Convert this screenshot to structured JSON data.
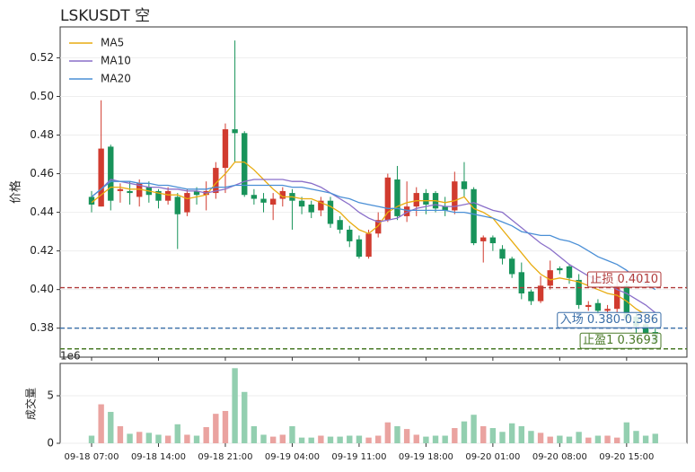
{
  "chart_data": {
    "type": "candlestick",
    "title": "LSKUSDT  空",
    "ylabel": "价格",
    "volume_ylabel": "成交量",
    "volume_offset_label": "1e6",
    "categories": [
      "09-18 07:00",
      null,
      null,
      null,
      null,
      null,
      null,
      "09-18 14:00",
      null,
      null,
      null,
      null,
      null,
      null,
      "09-18 21:00",
      null,
      null,
      null,
      null,
      null,
      null,
      "09-19 04:00",
      null,
      null,
      null,
      null,
      null,
      null,
      "09-19 11:00",
      null,
      null,
      null,
      null,
      null,
      null,
      "09-19 18:00",
      null,
      null,
      null,
      null,
      null,
      null,
      "09-20 01:00",
      null,
      null,
      null,
      null,
      null,
      null,
      "09-20 08:00",
      null,
      null,
      null,
      null,
      null,
      null,
      "09-20 15:00",
      null,
      null,
      null
    ],
    "open": [
      0.448,
      0.443,
      0.474,
      0.451,
      0.451,
      0.448,
      0.453,
      0.451,
      0.446,
      0.448,
      0.44,
      0.451,
      0.449,
      0.45,
      0.463,
      0.483,
      0.481,
      0.449,
      0.447,
      0.444,
      0.447,
      0.45,
      0.446,
      0.444,
      0.441,
      0.446,
      0.436,
      0.431,
      0.426,
      0.417,
      0.429,
      0.436,
      0.457,
      0.438,
      0.443,
      0.45,
      0.45,
      0.443,
      0.441,
      0.456,
      0.452,
      0.425,
      0.427,
      0.421,
      0.416,
      0.409,
      0.399,
      0.394,
      0.402,
      0.411,
      0.412,
      0.405,
      0.391,
      0.393,
      0.389,
      0.39,
      0.402,
      0.386,
      0.382,
      0.378
    ],
    "high": [
      0.451,
      0.498,
      0.475,
      0.455,
      0.456,
      0.457,
      0.456,
      0.452,
      0.453,
      0.45,
      0.452,
      0.453,
      0.456,
      0.466,
      0.486,
      0.529,
      0.482,
      0.452,
      0.45,
      0.45,
      0.453,
      0.452,
      0.448,
      0.446,
      0.448,
      0.448,
      0.438,
      0.433,
      0.428,
      0.431,
      0.44,
      0.46,
      0.464,
      0.456,
      0.453,
      0.452,
      0.451,
      0.448,
      0.461,
      0.466,
      0.453,
      0.428,
      0.428,
      0.423,
      0.417,
      0.414,
      0.4,
      0.407,
      0.415,
      0.412,
      0.413,
      0.408,
      0.394,
      0.395,
      0.392,
      0.405,
      0.404,
      0.388,
      0.384,
      0.38
    ],
    "low": [
      0.44,
      0.443,
      0.441,
      0.445,
      0.444,
      0.443,
      0.445,
      0.442,
      0.444,
      0.421,
      0.438,
      0.444,
      0.441,
      0.447,
      0.45,
      0.466,
      0.448,
      0.444,
      0.44,
      0.436,
      0.443,
      0.431,
      0.439,
      0.437,
      0.438,
      0.432,
      0.429,
      0.422,
      0.416,
      0.416,
      0.427,
      0.435,
      0.436,
      0.435,
      0.438,
      0.439,
      0.44,
      0.438,
      0.439,
      0.448,
      0.423,
      0.414,
      0.42,
      0.413,
      0.406,
      0.395,
      0.392,
      0.393,
      0.4,
      0.408,
      0.403,
      0.39,
      0.389,
      0.387,
      0.385,
      0.388,
      0.382,
      0.377,
      0.374,
      0.371
    ],
    "close": [
      0.444,
      0.473,
      0.446,
      0.452,
      0.45,
      0.455,
      0.449,
      0.446,
      0.451,
      0.439,
      0.45,
      0.449,
      0.451,
      0.463,
      0.483,
      0.481,
      0.449,
      0.447,
      0.445,
      0.447,
      0.451,
      0.446,
      0.443,
      0.44,
      0.446,
      0.434,
      0.431,
      0.425,
      0.417,
      0.429,
      0.436,
      0.458,
      0.438,
      0.443,
      0.45,
      0.444,
      0.442,
      0.441,
      0.456,
      0.452,
      0.424,
      0.427,
      0.424,
      0.416,
      0.408,
      0.398,
      0.394,
      0.402,
      0.41,
      0.41,
      0.406,
      0.392,
      0.392,
      0.389,
      0.39,
      0.402,
      0.385,
      0.381,
      0.377,
      0.373
    ],
    "volume": [
      0.8,
      4.1,
      3.3,
      1.8,
      1.0,
      1.2,
      1.1,
      0.9,
      0.8,
      2.0,
      0.9,
      0.8,
      1.7,
      3.1,
      3.4,
      7.9,
      5.4,
      1.8,
      0.9,
      0.7,
      0.9,
      1.8,
      0.6,
      0.6,
      0.8,
      0.7,
      0.7,
      0.8,
      0.8,
      0.6,
      0.8,
      2.2,
      1.8,
      1.5,
      0.9,
      0.7,
      0.8,
      0.8,
      1.6,
      2.3,
      3.0,
      1.8,
      1.6,
      1.2,
      2.1,
      1.8,
      1.3,
      1.1,
      0.7,
      0.8,
      0.7,
      1.2,
      0.6,
      0.8,
      0.8,
      0.6,
      2.2,
      1.3,
      0.8,
      1.0
    ],
    "up_color": "#d13b2f",
    "down_color": "#18935a",
    "volume_up_color": "#eaa3a0",
    "volume_down_color": "#93cfb0",
    "series": [
      {
        "name": "MA5",
        "color": "#e8ac10",
        "values": [
          0.445,
          0.449,
          0.453,
          0.453,
          0.452,
          0.452,
          0.451,
          0.45,
          0.449,
          0.449,
          0.447,
          0.448,
          0.449,
          0.455,
          0.46,
          0.466,
          0.466,
          0.462,
          0.457,
          0.452,
          0.448,
          0.448,
          0.447,
          0.447,
          0.445,
          0.443,
          0.44,
          0.435,
          0.431,
          0.429,
          0.433,
          0.44,
          0.443,
          0.445,
          0.446,
          0.446,
          0.446,
          0.445,
          0.446,
          0.448,
          0.442,
          0.44,
          0.437,
          0.431,
          0.425,
          0.419,
          0.413,
          0.408,
          0.405,
          0.406,
          0.405,
          0.404,
          0.402,
          0.4,
          0.398,
          0.397,
          0.394,
          0.39,
          0.387,
          0.384
        ]
      },
      {
        "name": "MA10",
        "color": "#8a6fc9",
        "values": [
          0.448,
          0.452,
          0.457,
          0.456,
          0.455,
          0.454,
          0.453,
          0.453,
          0.452,
          0.452,
          0.451,
          0.451,
          0.45,
          0.451,
          0.452,
          0.454,
          0.456,
          0.457,
          0.457,
          0.457,
          0.457,
          0.456,
          0.456,
          0.455,
          0.453,
          0.45,
          0.447,
          0.444,
          0.44,
          0.437,
          0.435,
          0.436,
          0.437,
          0.44,
          0.442,
          0.443,
          0.444,
          0.443,
          0.443,
          0.444,
          0.445,
          0.443,
          0.441,
          0.44,
          0.436,
          0.432,
          0.428,
          0.424,
          0.421,
          0.417,
          0.413,
          0.41,
          0.407,
          0.405,
          0.403,
          0.4,
          0.398,
          0.395,
          0.392,
          0.388
        ]
      },
      {
        "name": "MA20",
        "color": "#4a8fd6",
        "values": [
          0.448,
          0.452,
          0.456,
          0.456,
          0.456,
          0.455,
          0.455,
          0.454,
          0.454,
          0.453,
          0.452,
          0.452,
          0.452,
          0.453,
          0.453,
          0.454,
          0.454,
          0.454,
          0.454,
          0.454,
          0.454,
          0.453,
          0.453,
          0.452,
          0.451,
          0.45,
          0.448,
          0.447,
          0.445,
          0.444,
          0.443,
          0.442,
          0.442,
          0.441,
          0.441,
          0.441,
          0.441,
          0.441,
          0.44,
          0.44,
          0.439,
          0.438,
          0.437,
          0.435,
          0.433,
          0.43,
          0.429,
          0.428,
          0.428,
          0.426,
          0.425,
          0.423,
          0.42,
          0.417,
          0.415,
          0.413,
          0.41,
          0.406,
          0.403,
          0.4
        ]
      }
    ],
    "hlines": [
      {
        "value": 0.401,
        "label": "止损 0.4010",
        "color": "#b03a3a"
      },
      {
        "value": 0.38,
        "label": "入场 0.380-0.386",
        "color": "#3a6ea8"
      },
      {
        "value": 0.3693,
        "label": "止盈1 0.3693",
        "color": "#4a7a28"
      }
    ],
    "ylim": [
      0.365,
      0.536
    ],
    "yticks": [
      0.38,
      {
        "value": 0.4,
        "label": "0.40"
      },
      0.42,
      0.44,
      0.46,
      0.48,
      {
        "value": 0.5,
        "label": "0.50"
      },
      0.52
    ],
    "volume_ylim": [
      0,
      8.4
    ],
    "volume_yticks": [
      0,
      5
    ],
    "grid": true,
    "legend": "upper left"
  }
}
